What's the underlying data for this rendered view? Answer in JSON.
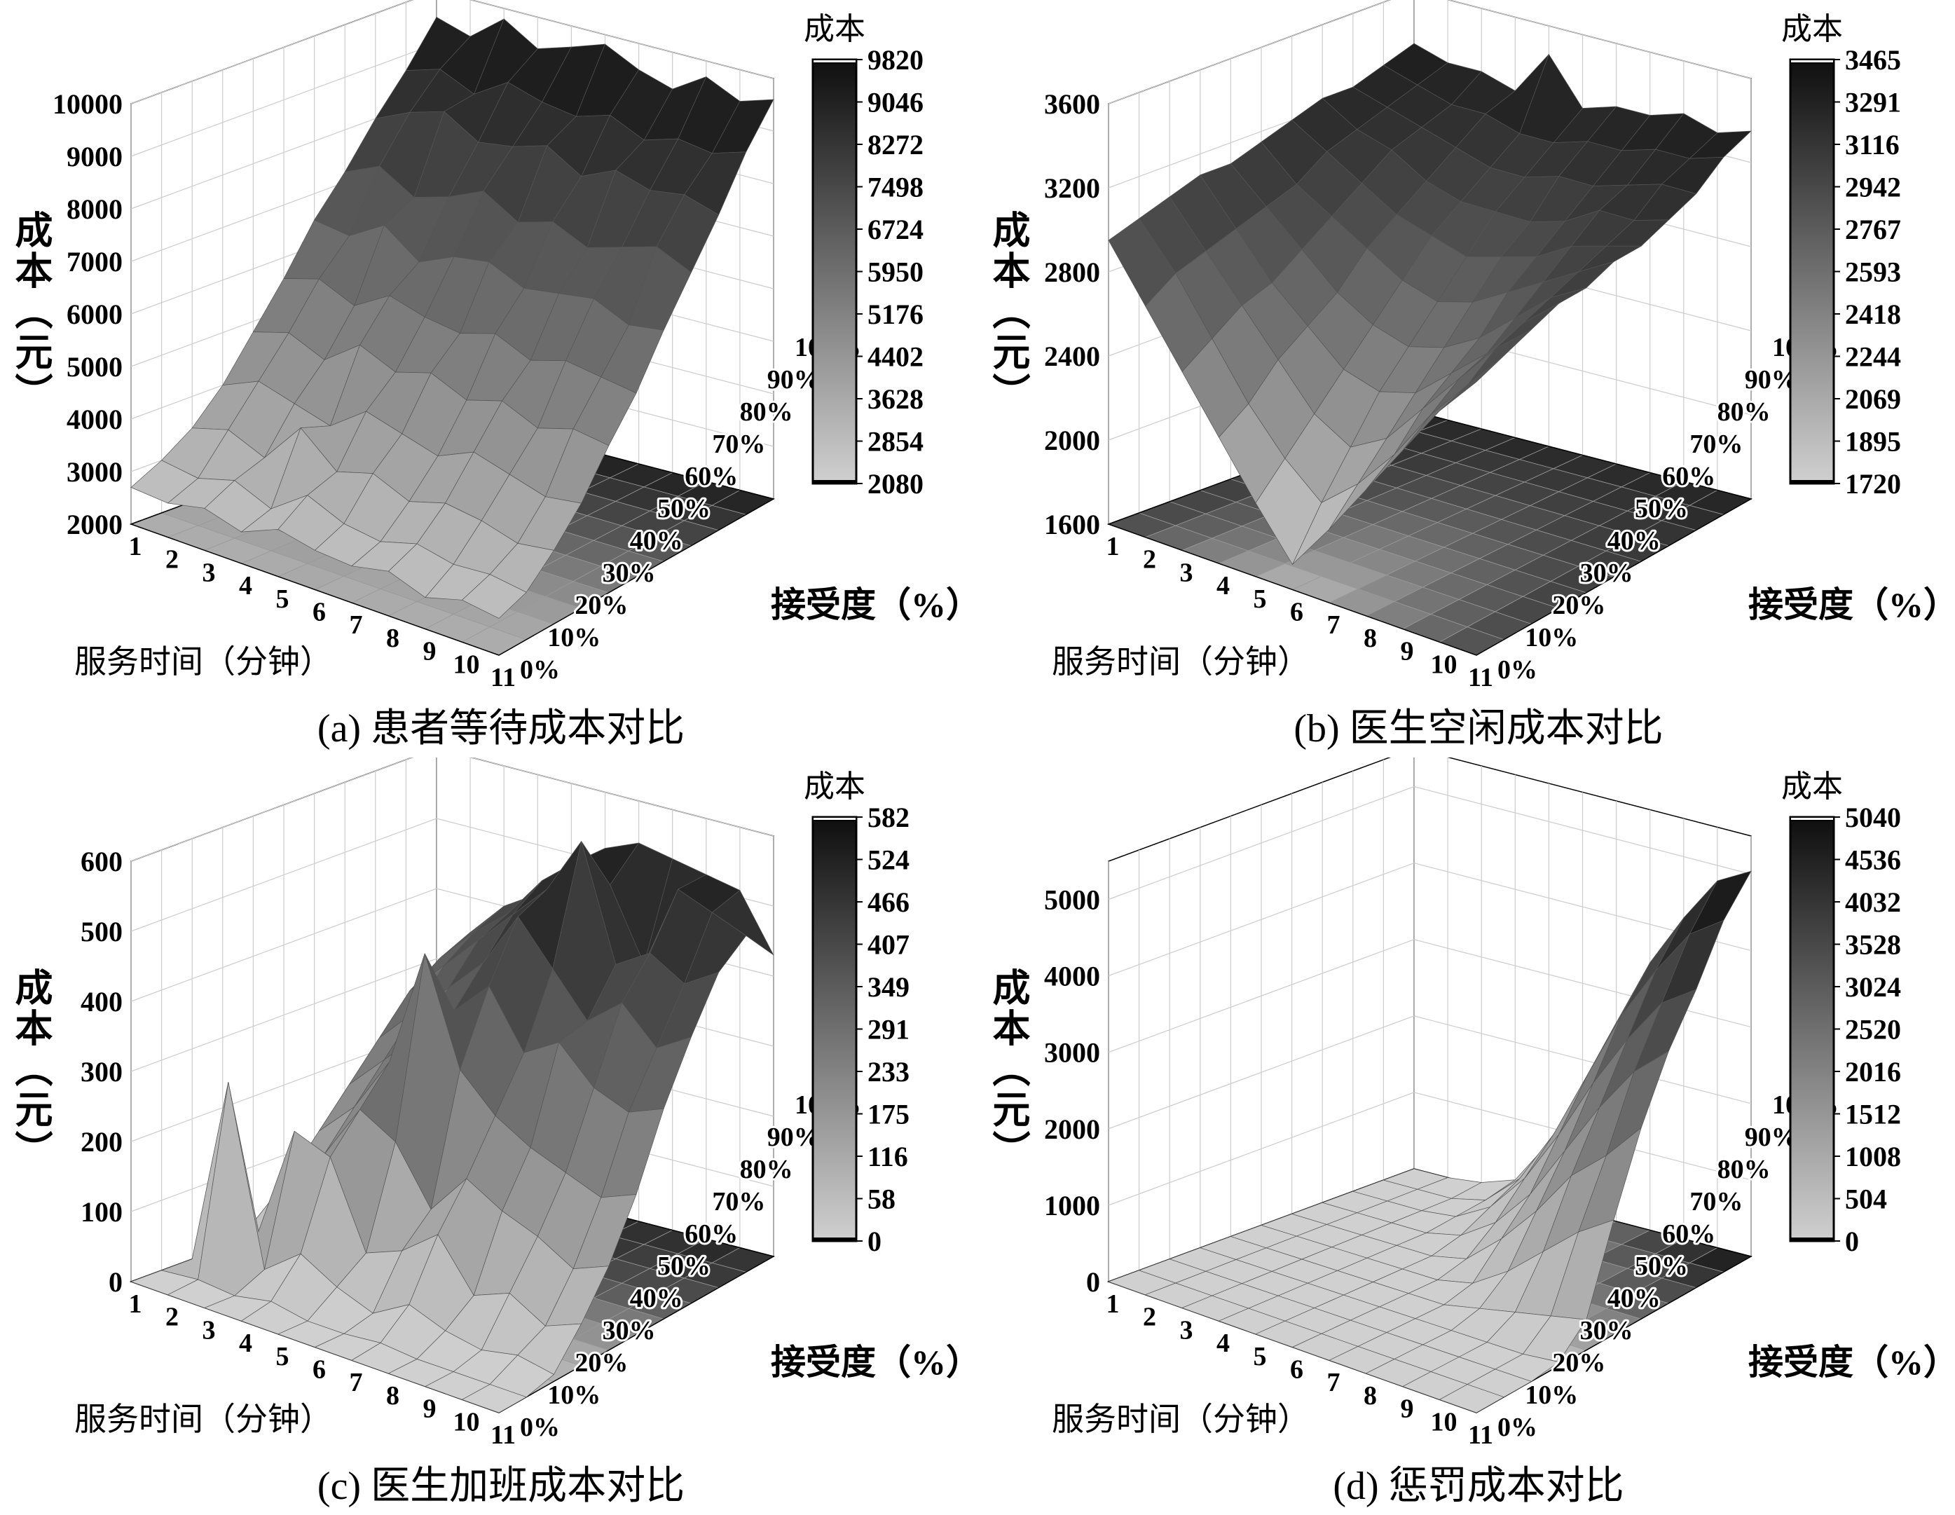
{
  "chart_data": [
    {
      "type": "surface3d",
      "caption": "(a) 患者等待成本对比",
      "zlabel": "成本（元）",
      "xlabel": "服务时间（分钟）",
      "ylabel": "接受度（%）",
      "colorbar_title": "成本",
      "x_ticks": [
        "1",
        "2",
        "3",
        "4",
        "5",
        "6",
        "7",
        "8",
        "9",
        "10",
        "11"
      ],
      "y_ticks": [
        "0%",
        "10%",
        "20%",
        "30%",
        "40%",
        "50%",
        "60%",
        "70%",
        "80%",
        "90%",
        "100%"
      ],
      "z_ticks": [
        "2000",
        "3000",
        "4000",
        "5000",
        "6000",
        "7000",
        "8000",
        "9000",
        "10000"
      ],
      "zlim": [
        2000,
        10000
      ],
      "colorbar_ticks": [
        "9820",
        "9046",
        "8272",
        "7498",
        "6724",
        "5950",
        "5176",
        "4402",
        "3628",
        "2854",
        "2080"
      ],
      "colorbar_range": [
        2080,
        9820
      ],
      "colormap": "gray (light=low, dark=high)",
      "z_rows_by_acceptance": [
        [
          2700,
          2650,
          2800,
          2600,
          2900,
          2750,
          2700,
          2850,
          2600,
          2800,
          2700
        ],
        [
          3000,
          2900,
          3100,
          2800,
          3300,
          3000,
          2900,
          3100,
          2950,
          3000,
          2900
        ],
        [
          3400,
          3600,
          3300,
          4100,
          3500,
          3700,
          3400,
          3600,
          3500,
          3300,
          3400
        ],
        [
          4000,
          4300,
          4100,
          3900,
          4400,
          4200,
          4000,
          4300,
          4100,
          3900,
          4000
        ],
        [
          4800,
          5000,
          4700,
          5200,
          4900,
          5100,
          4800,
          5000,
          4700,
          4900,
          4800
        ],
        [
          5600,
          5800,
          5500,
          5900,
          5700,
          5600,
          5800,
          5500,
          5700,
          5600,
          5500
        ],
        [
          6500,
          6400,
          6800,
          6300,
          6600,
          6700,
          6400,
          6500,
          6600,
          6300,
          6400
        ],
        [
          7200,
          7500,
          7100,
          7300,
          7600,
          7200,
          7400,
          7100,
          7300,
          7500,
          7200
        ],
        [
          8000,
          8300,
          8500,
          8100,
          8200,
          8400,
          8000,
          8300,
          8100,
          8200,
          8000
        ],
        [
          8700,
          8900,
          8600,
          9000,
          8800,
          8700,
          8900,
          8600,
          8800,
          8700,
          8900
        ],
        [
          9500,
          9300,
          9800,
          9400,
          9600,
          9820,
          9500,
          9300,
          9700,
          9400,
          9600
        ]
      ]
    },
    {
      "type": "surface3d",
      "caption": "(b) 医生空闲成本对比",
      "zlabel": "成本（元）",
      "xlabel": "服务时间（分钟）",
      "ylabel": "接受度（%）",
      "colorbar_title": "成本",
      "x_ticks": [
        "1",
        "2",
        "3",
        "4",
        "5",
        "6",
        "7",
        "8",
        "9",
        "10",
        "11"
      ],
      "y_ticks": [
        "0%",
        "10%",
        "20%",
        "30%",
        "40%",
        "50%",
        "60%",
        "70%",
        "80%",
        "90%",
        "100%"
      ],
      "z_ticks": [
        "1600",
        "2000",
        "2400",
        "2800",
        "3200",
        "3600"
      ],
      "zlim": [
        1600,
        3600
      ],
      "colorbar_ticks": [
        "3465",
        "3291",
        "3116",
        "2942",
        "2767",
        "2593",
        "2418",
        "2244",
        "2069",
        "1895",
        "1720"
      ],
      "colorbar_range": [
        1720,
        3465
      ],
      "colormap": "gray (light=low, dark=high)",
      "z_rows_by_acceptance": [
        [
          2950,
          2700,
          2450,
          2200,
          1950,
          1720,
          1950,
          2200,
          2450,
          2700,
          2900
        ],
        [
          3000,
          2800,
          2550,
          2300,
          2100,
          1950,
          2100,
          2300,
          2550,
          2750,
          2950
        ],
        [
          3050,
          2850,
          2650,
          2450,
          2250,
          2150,
          2250,
          2450,
          2650,
          2850,
          3000
        ],
        [
          3100,
          2900,
          2700,
          2550,
          2400,
          2350,
          2400,
          2550,
          2700,
          2900,
          3050
        ],
        [
          3100,
          2950,
          2800,
          2650,
          2550,
          2500,
          2550,
          2650,
          2800,
          2950,
          3050
        ],
        [
          3150,
          3000,
          2900,
          2800,
          2700,
          2650,
          2700,
          2800,
          2900,
          3000,
          3100
        ],
        [
          3200,
          3100,
          3000,
          2900,
          2850,
          2800,
          2850,
          2900,
          3000,
          3050,
          3100
        ],
        [
          3250,
          3150,
          3100,
          3000,
          2950,
          2950,
          2950,
          3000,
          3100,
          3100,
          3150
        ],
        [
          3250,
          3200,
          3150,
          3100,
          3050,
          3050,
          3100,
          3100,
          3150,
          3200,
          3200
        ],
        [
          3300,
          3250,
          3200,
          3200,
          3150,
          3150,
          3200,
          3200,
          3250,
          3250,
          3300
        ],
        [
          3350,
          3300,
          3300,
          3250,
          3465,
          3250,
          3300,
          3300,
          3350,
          3300,
          3350
        ]
      ]
    },
    {
      "type": "surface3d",
      "caption": "(c) 医生加班成本对比",
      "zlabel": "成本（元）",
      "xlabel": "服务时间（分钟）",
      "ylabel": "接受度（%）",
      "colorbar_title": "成本",
      "x_ticks": [
        "1",
        "2",
        "3",
        "4",
        "5",
        "6",
        "7",
        "8",
        "9",
        "10",
        "11"
      ],
      "y_ticks": [
        "0%",
        "10%",
        "20%",
        "30%",
        "40%",
        "50%",
        "60%",
        "70%",
        "80%",
        "90%",
        "100%"
      ],
      "z_ticks": [
        "0",
        "100",
        "200",
        "300",
        "400",
        "500",
        "600"
      ],
      "zlim": [
        0,
        600
      ],
      "colorbar_ticks": [
        "582",
        "524",
        "466",
        "407",
        "349",
        "291",
        "233",
        "175",
        "116",
        "58",
        "0"
      ],
      "colorbar_range": [
        0,
        582
      ],
      "colormap": "gray (light=low, dark=high)",
      "z_rows_by_acceptance": [
        [
          0,
          0,
          0,
          0,
          0,
          0,
          0,
          0,
          0,
          0,
          0
        ],
        [
          0,
          5,
          0,
          10,
          0,
          0,
          5,
          0,
          0,
          0,
          0
        ],
        [
          0,
          270,
          20,
          60,
          30,
          10,
          40,
          20,
          10,
          20,
          10
        ],
        [
          10,
          40,
          200,
          180,
          60,
          80,
          120,
          50,
          70,
          40,
          60
        ],
        [
          20,
          100,
          150,
          230,
          200,
          120,
          180,
          150,
          130,
          100,
          120
        ],
        [
          40,
          150,
          200,
          280,
          450,
          300,
          250,
          220,
          200,
          180,
          200
        ],
        [
          60,
          200,
          250,
          300,
          350,
          400,
          320,
          350,
          300,
          280,
          300
        ],
        [
          80,
          250,
          300,
          350,
          400,
          480,
          420,
          360,
          400,
          350,
          380
        ],
        [
          100,
          300,
          350,
          400,
          450,
          500,
          582,
          420,
          450,
          420,
          450
        ],
        [
          120,
          330,
          380,
          420,
          480,
          520,
          500,
          400,
          520,
          500,
          480
        ],
        [
          140,
          350,
          400,
          430,
          470,
          520,
          540,
          530,
          520,
          510,
          430
        ]
      ]
    },
    {
      "type": "surface3d",
      "caption": "(d) 惩罚成本对比",
      "zlabel": "成本（元）",
      "xlabel": "服务时间（分钟）",
      "ylabel": "接受度（%）",
      "colorbar_title": "成本",
      "x_ticks": [
        "1",
        "2",
        "3",
        "4",
        "5",
        "6",
        "7",
        "8",
        "9",
        "10",
        "11"
      ],
      "y_ticks": [
        "0%",
        "10%",
        "20%",
        "30%",
        "40%",
        "50%",
        "60%",
        "70%",
        "80%",
        "90%",
        "100%"
      ],
      "z_ticks": [
        "0",
        "1000",
        "2000",
        "3000",
        "4000",
        "5000"
      ],
      "zlim": [
        0,
        5500
      ],
      "colorbar_ticks": [
        "5040",
        "4536",
        "4032",
        "3528",
        "3024",
        "2520",
        "2016",
        "1512",
        "1008",
        "504",
        "0"
      ],
      "colorbar_range": [
        0,
        5040
      ],
      "colormap": "gray (light=low, dark=high)",
      "z_rows_by_acceptance": [
        [
          0,
          0,
          0,
          0,
          0,
          0,
          0,
          0,
          0,
          0,
          0
        ],
        [
          0,
          0,
          0,
          0,
          0,
          0,
          0,
          0,
          0,
          0,
          0
        ],
        [
          0,
          0,
          0,
          0,
          0,
          0,
          0,
          0,
          0,
          0,
          0
        ],
        [
          0,
          0,
          0,
          0,
          0,
          0,
          0,
          0,
          0,
          0,
          50
        ],
        [
          0,
          0,
          0,
          0,
          0,
          0,
          0,
          100,
          200,
          300,
          400
        ],
        [
          0,
          0,
          0,
          0,
          0,
          0,
          100,
          400,
          800,
          1200,
          1500
        ],
        [
          0,
          0,
          0,
          0,
          0,
          100,
          500,
          1000,
          1600,
          2000,
          2500
        ],
        [
          0,
          0,
          0,
          0,
          100,
          400,
          900,
          1600,
          2300,
          2900,
          3300
        ],
        [
          0,
          0,
          0,
          50,
          300,
          800,
          1500,
          2300,
          3000,
          3600,
          3900
        ],
        [
          0,
          0,
          0,
          100,
          500,
          1200,
          2100,
          3000,
          3700,
          4300,
          4600
        ],
        [
          0,
          0,
          50,
          200,
          800,
          1600,
          2600,
          3500,
          4200,
          4800,
          5040
        ]
      ]
    }
  ]
}
